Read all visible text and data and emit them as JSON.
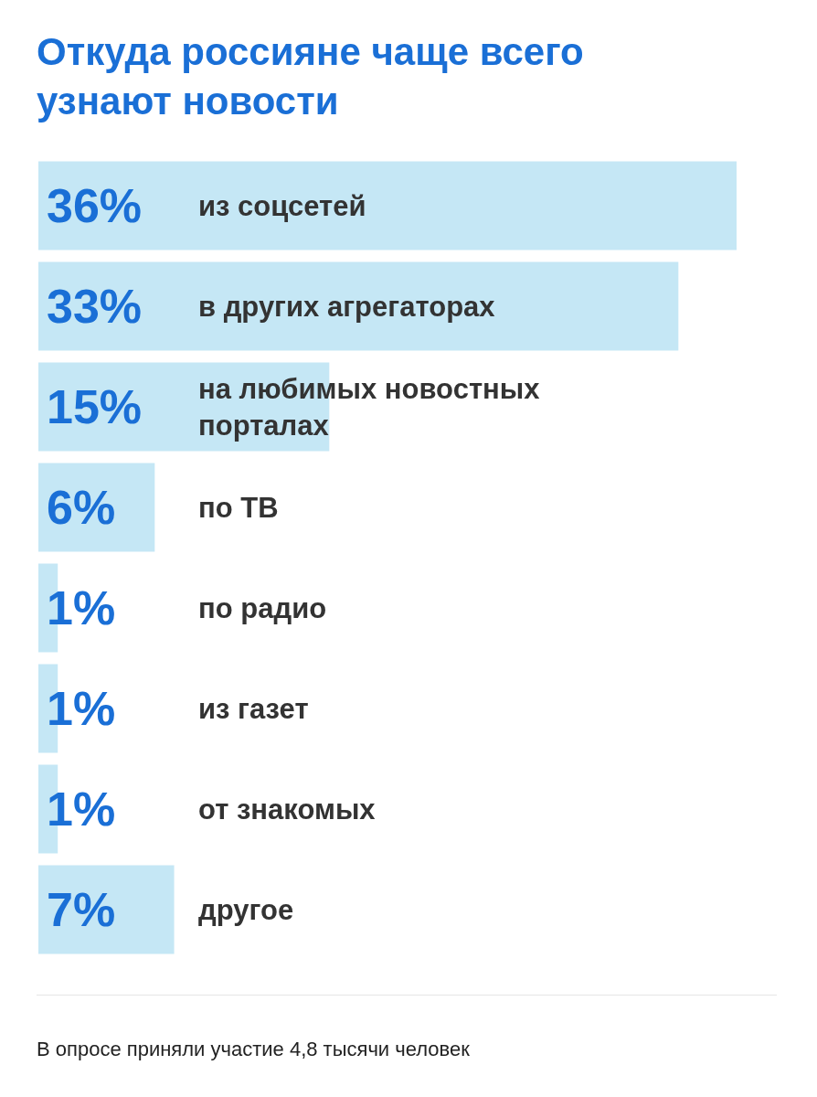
{
  "chart_data": {
    "type": "bar",
    "orientation": "horizontal",
    "title": "Откуда россияне чаще всего узнают новости",
    "categories": [
      "из соцсетей",
      "в других агрегаторах",
      "на любимых новостных порталах",
      "по ТВ",
      "по радио",
      "из газет",
      "от знакомых",
      "другое"
    ],
    "values": [
      36,
      33,
      15,
      6,
      1,
      1,
      1,
      7
    ],
    "value_labels": [
      "36%",
      "33%",
      "15%",
      "6%",
      "1%",
      "1%",
      "1%",
      "7%"
    ],
    "color": "#c5e7f5",
    "xlim": [
      0,
      36
    ],
    "tick_labels": "y",
    "annotations": [
      "В опросе приняли участие 4,8 тысячи человек"
    ]
  }
}
